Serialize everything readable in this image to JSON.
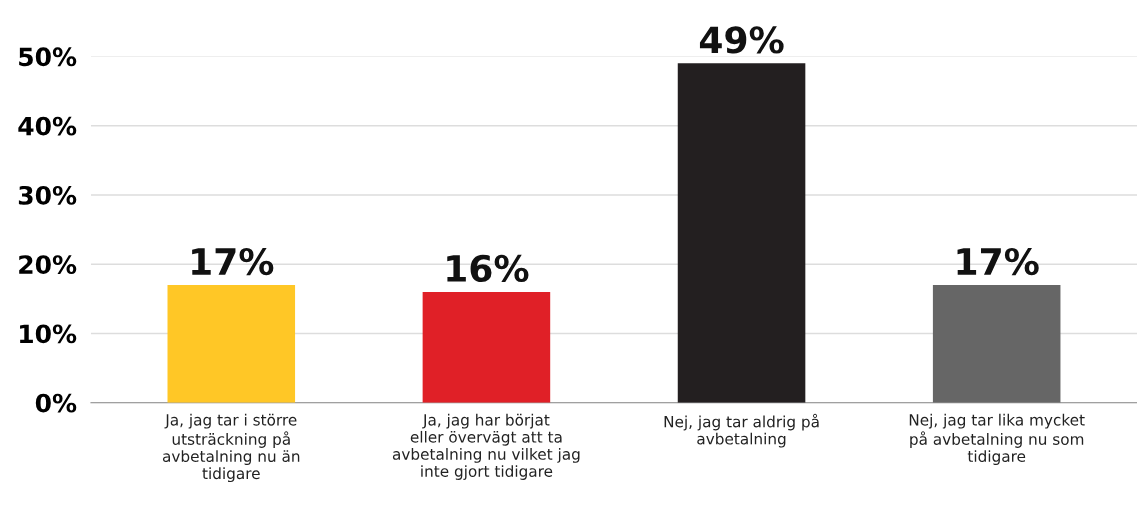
{
  "chart_data": {
    "type": "bar",
    "categories": [
      "Ja, jag tar i större\nutsträckning på\navbetalning nu än\ntidigare",
      "Ja, jag har börjat\neller övervägt att ta\navbetalning nu vilket jag\ninte gjort tidigare",
      "Nej, jag tar aldrig på\navbetalning",
      "Nej, jag tar lika mycket\npå avbetalning nu som\ntidigare"
    ],
    "values": [
      17,
      16,
      49,
      17
    ],
    "colors": [
      "#ffc726",
      "#e02027",
      "#231f20",
      "#666666"
    ],
    "value_labels": [
      "17%",
      "16%",
      "49%",
      "17%"
    ],
    "ylim": [
      0,
      50
    ],
    "yticks": [
      {
        "value": 0,
        "label": "0%"
      },
      {
        "value": 10,
        "label": "10%"
      },
      {
        "value": 20,
        "label": "20%"
      },
      {
        "value": 30,
        "label": "30%"
      },
      {
        "value": 40,
        "label": "40%"
      },
      {
        "value": 50,
        "label": "50%"
      }
    ],
    "grid": "y"
  }
}
